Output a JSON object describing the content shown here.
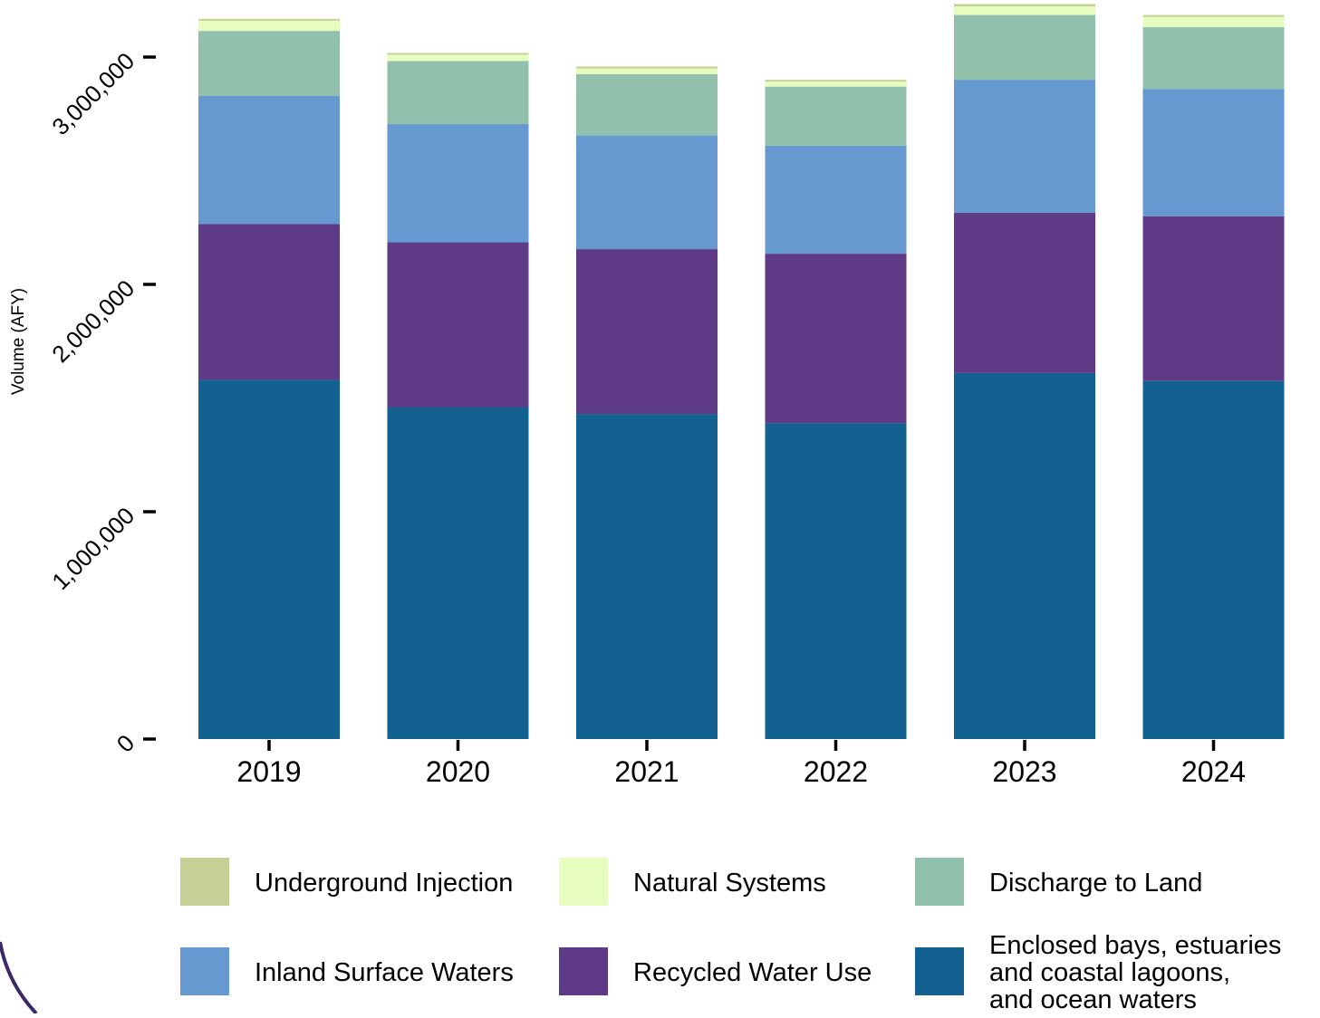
{
  "chart_data": {
    "type": "bar",
    "stacked": true,
    "title": "",
    "xlabel": "",
    "ylabel": "Volume (AFY)",
    "ylim": [
      0,
      3200000
    ],
    "yticks": [
      0,
      1000000,
      2000000,
      3000000
    ],
    "ytick_labels": [
      "0",
      "1,000,000",
      "2,000,000",
      "3,000,000"
    ],
    "categories": [
      "2019",
      "2020",
      "2021",
      "2022",
      "2023",
      "2024"
    ],
    "grid": false,
    "legend_position": "bottom",
    "series": [
      {
        "name": "Enclosed bays, estuaries and coastal lagoons, and ocean waters",
        "color": "#136190",
        "values": [
          1580000,
          1460000,
          1430000,
          1390000,
          1610000,
          1575000
        ]
      },
      {
        "name": "Recycled Water Use",
        "color": "#5e3a87",
        "values": [
          685000,
          725000,
          725000,
          745000,
          705000,
          725000
        ]
      },
      {
        "name": "Inland Surface Waters",
        "color": "#6699cf",
        "values": [
          565000,
          520000,
          500000,
          475000,
          585000,
          560000
        ]
      },
      {
        "name": "Discharge to Land",
        "color": "#91c1ac",
        "values": [
          285000,
          278000,
          270000,
          260000,
          285000,
          272000
        ]
      },
      {
        "name": "Natural Systems",
        "color": "#e6fdbf",
        "values": [
          45000,
          27000,
          25000,
          22000,
          38000,
          45000
        ]
      },
      {
        "name": "Underground Injection",
        "color": "#c6cf95",
        "values": [
          8000,
          8000,
          8000,
          8000,
          10000,
          8000
        ]
      }
    ],
    "legend_order": [
      "Underground Injection",
      "Natural Systems",
      "Discharge to Land",
      "Inland Surface Waters",
      "Recycled Water Use",
      "Enclosed bays, estuaries and coastal lagoons, and ocean waters"
    ],
    "legend_lines": {
      "Enclosed bays, estuaries and coastal lagoons, and ocean waters": [
        "Enclosed bays, estuaries",
        "and coastal lagoons,",
        "and ocean waters"
      ]
    },
    "decoration_color": "#3a2a6a"
  }
}
